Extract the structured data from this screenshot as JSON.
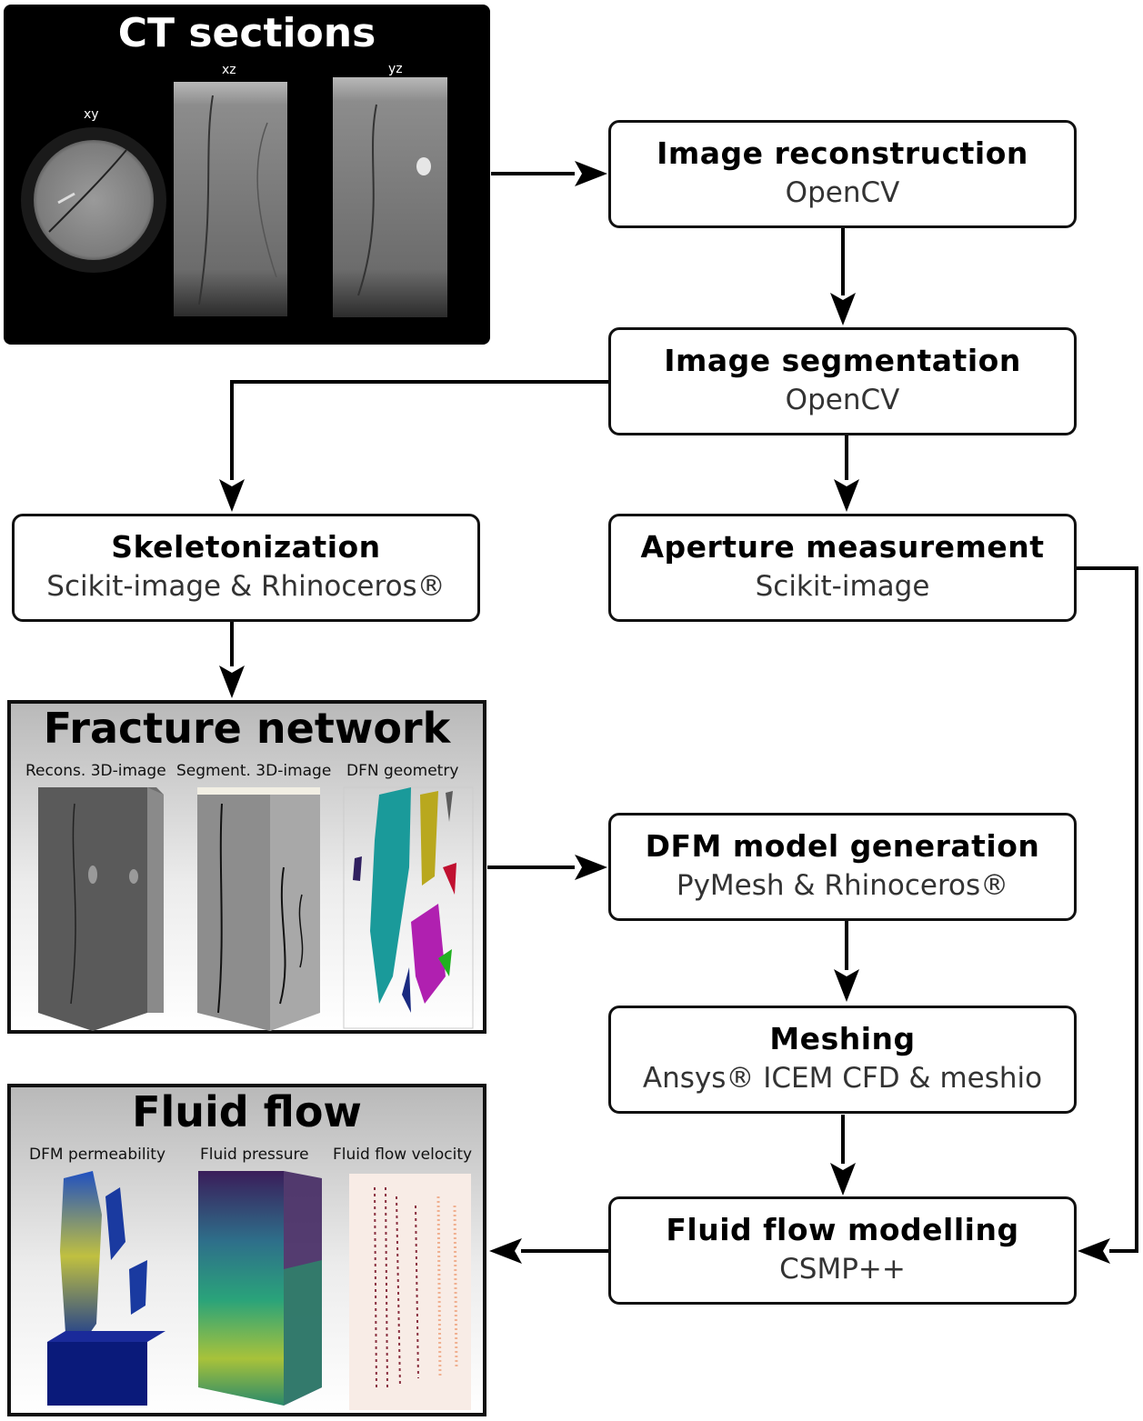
{
  "ct_panel": {
    "title": "CT sections",
    "labels": {
      "xy": "xy",
      "xz": "xz",
      "yz": "yz"
    }
  },
  "fracture_panel": {
    "title": "Fracture network",
    "labels": [
      "Recons. 3D-image",
      "Segment. 3D-image",
      "DFN geometry"
    ]
  },
  "fluid_panel": {
    "title": "Fluid flow",
    "labels": [
      "DFM permeability",
      "Fluid pressure",
      "Fluid flow velocity"
    ]
  },
  "steps": {
    "reconstruction": {
      "title": "Image reconstruction",
      "tool": "OpenCV"
    },
    "segmentation": {
      "title": "Image segmentation",
      "tool": "OpenCV"
    },
    "skeletonization": {
      "title": "Skeletonization",
      "tool": "Scikit-image & Rhinoceros®"
    },
    "aperture": {
      "title": "Aperture measurement",
      "tool": "Scikit-image"
    },
    "dfm": {
      "title": "DFM model generation",
      "tool": "PyMesh & Rhinoceros®"
    },
    "meshing": {
      "title": "Meshing",
      "tool": "Ansys® ICEM CFD & meshio"
    },
    "flow": {
      "title": "Fluid flow modelling",
      "tool": "CSMP++"
    }
  }
}
